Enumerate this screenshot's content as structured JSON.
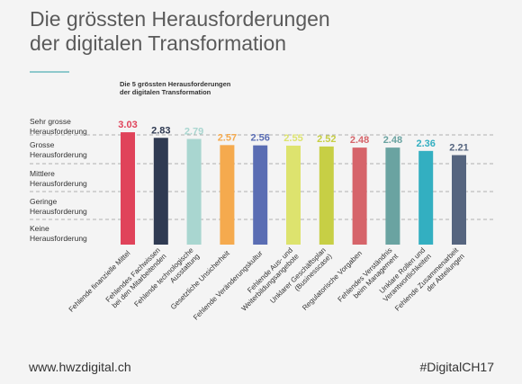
{
  "header": {
    "title_line1": "Die grössten Herausforderungen",
    "title_line2": "der digitalen Transformation"
  },
  "footer": {
    "website": "www.hwzdigital.ch",
    "hashtag": "#DigitalCH17"
  },
  "chart_data": {
    "type": "bar",
    "title": "Die 5 grössten Herausforderungen\nder digitalen Transformation",
    "categories": [
      "Fehlende finanzielle Mittel",
      "Fehlendes Fachwissen\nbei den Mitarbeitenden",
      "Fehlende technologische\nAusstattung",
      "Gesetzliche Unsicherheit",
      "Fehlende Veränderungskultur",
      "Fehlende Aus- und\nWeiterbildungsangebote",
      "Unklarer Geschäftsplan\n(Businesscase)",
      "Regulatorische Vorgaben",
      "Fehlendes Verständnis\nbeim Management",
      "Unklare Rollen und\nVerantwortlichkeiten",
      "Fehlende Zusammenarbeit\nder Abteilungen"
    ],
    "values": [
      3.03,
      2.83,
      2.79,
      2.57,
      2.56,
      2.55,
      2.52,
      2.48,
      2.48,
      2.36,
      2.21
    ],
    "value_labels": [
      "3.03",
      "2.83",
      "2.79",
      "2.57",
      "2.56",
      "2.55",
      "2.52",
      "2.48",
      "2.48",
      "2.36",
      "2.21"
    ],
    "colors": [
      "#e0435a",
      "#2f3a52",
      "#a9d6d0",
      "#f5aa4e",
      "#5a6db3",
      "#dde36e",
      "#c7cf45",
      "#d6646a",
      "#6aa3a1",
      "#33afc1",
      "#56657f"
    ],
    "y_levels": [
      {
        "label": "Sehr grosse\nHerausforderung",
        "value": 3
      },
      {
        "label": "Grosse\nHerausforderung",
        "value": 2
      },
      {
        "label": "Mittlere\nHerausforderung",
        "value": 1
      },
      {
        "label": "Geringe\nHerausforderung",
        "value": 0
      },
      {
        "label": "Keine\nHerausforderung",
        "value": -1
      }
    ],
    "ylim": [
      -1,
      3
    ],
    "grid": true
  }
}
